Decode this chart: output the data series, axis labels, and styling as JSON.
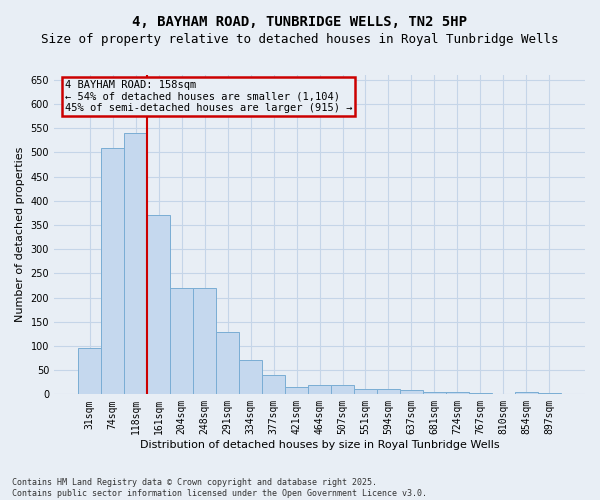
{
  "title": "4, BAYHAM ROAD, TUNBRIDGE WELLS, TN2 5HP",
  "subtitle": "Size of property relative to detached houses in Royal Tunbridge Wells",
  "xlabel": "Distribution of detached houses by size in Royal Tunbridge Wells",
  "ylabel": "Number of detached properties",
  "footer_line1": "Contains HM Land Registry data © Crown copyright and database right 2025.",
  "footer_line2": "Contains public sector information licensed under the Open Government Licence v3.0.",
  "categories": [
    "31sqm",
    "74sqm",
    "118sqm",
    "161sqm",
    "204sqm",
    "248sqm",
    "291sqm",
    "334sqm",
    "377sqm",
    "421sqm",
    "464sqm",
    "507sqm",
    "551sqm",
    "594sqm",
    "637sqm",
    "681sqm",
    "724sqm",
    "767sqm",
    "810sqm",
    "854sqm",
    "897sqm"
  ],
  "values": [
    95,
    510,
    540,
    370,
    220,
    220,
    128,
    70,
    40,
    15,
    20,
    20,
    10,
    10,
    8,
    4,
    4,
    2,
    1,
    4,
    3
  ],
  "bar_color": "#c5d8ee",
  "bar_edge_color": "#7aadd4",
  "grid_color": "#c5d5e8",
  "background_color": "#e8eef5",
  "vline_color": "#cc0000",
  "vline_x_index": 2,
  "annotation_text": "4 BAYHAM ROAD: 158sqm\n← 54% of detached houses are smaller (1,104)\n45% of semi-detached houses are larger (915) →",
  "annotation_box_edgecolor": "#cc0000",
  "ylim": [
    0,
    660
  ],
  "yticks": [
    0,
    50,
    100,
    150,
    200,
    250,
    300,
    350,
    400,
    450,
    500,
    550,
    600,
    650
  ],
  "title_fontsize": 10,
  "subtitle_fontsize": 9,
  "axis_label_fontsize": 8,
  "tick_fontsize": 7,
  "footer_fontsize": 6,
  "annotation_fontsize": 7.5
}
